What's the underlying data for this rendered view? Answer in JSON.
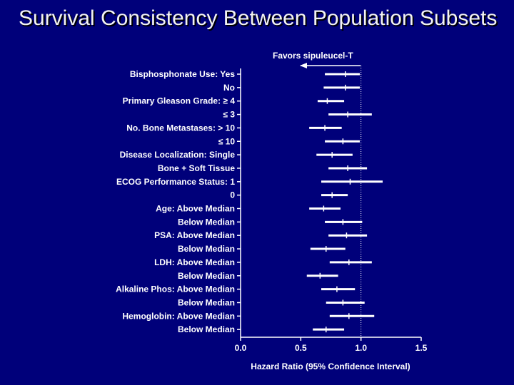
{
  "slide": {
    "title": "Survival Consistency Between Population Subsets"
  },
  "chart_data": {
    "type": "forest",
    "title": "Survival Consistency Between Population Subsets",
    "xlabel": "Hazard Ratio (95% Confidence Interval)",
    "xlim": [
      0.0,
      1.5
    ],
    "x_ticks": [
      "0.0",
      "0.5",
      "1.0",
      "1.5"
    ],
    "reference_line": 1.0,
    "favors_annotation": "Favors sipuleucel-T",
    "rows": [
      {
        "label": "Bisphosphonate Use: Yes",
        "hr": 0.87,
        "lo": 0.7,
        "hi": 0.99
      },
      {
        "label": "No",
        "hr": 0.87,
        "lo": 0.69,
        "hi": 0.99
      },
      {
        "label": "Primary Gleason Grade: ≥ 4",
        "hr": 0.72,
        "lo": 0.64,
        "hi": 0.86
      },
      {
        "label": "≤ 3",
        "hr": 0.89,
        "lo": 0.73,
        "hi": 1.09
      },
      {
        "label": "No. Bone Metastases: > 10",
        "hr": 0.7,
        "lo": 0.57,
        "hi": 0.84
      },
      {
        "label": "≤ 10",
        "hr": 0.85,
        "lo": 0.7,
        "hi": 0.99
      },
      {
        "label": "Disease Localization: Single",
        "hr": 0.76,
        "lo": 0.63,
        "hi": 0.93
      },
      {
        "label": "Bone + Soft Tissue",
        "hr": 0.89,
        "lo": 0.73,
        "hi": 1.05
      },
      {
        "label": "ECOG Performance Status: 1",
        "hr": 0.91,
        "lo": 0.67,
        "hi": 1.18
      },
      {
        "label": "0",
        "hr": 0.76,
        "lo": 0.67,
        "hi": 0.89
      },
      {
        "label": "Age: Above Median",
        "hr": 0.69,
        "lo": 0.57,
        "hi": 0.83
      },
      {
        "label": "Below Median",
        "hr": 0.85,
        "lo": 0.7,
        "hi": 1.01
      },
      {
        "label": "PSA: Above Median",
        "hr": 0.88,
        "lo": 0.73,
        "hi": 1.05
      },
      {
        "label": "Below Median",
        "hr": 0.71,
        "lo": 0.58,
        "hi": 0.87
      },
      {
        "label": "LDH: Above Median",
        "hr": 0.9,
        "lo": 0.74,
        "hi": 1.09
      },
      {
        "label": "Below Median",
        "hr": 0.66,
        "lo": 0.55,
        "hi": 0.81
      },
      {
        "label": "Alkaline Phos: Above Median",
        "hr": 0.8,
        "lo": 0.67,
        "hi": 0.95
      },
      {
        "label": "Below Median",
        "hr": 0.85,
        "lo": 0.71,
        "hi": 1.03
      },
      {
        "label": "Hemoglobin: Above Median",
        "hr": 0.9,
        "lo": 0.74,
        "hi": 1.11
      },
      {
        "label": "Below Median",
        "hr": 0.71,
        "lo": 0.6,
        "hi": 0.86
      }
    ]
  },
  "colors": {
    "background": "#00007a",
    "text": "#ffffff",
    "reference_line": "#ffffff",
    "title_shadow": "#000000"
  }
}
